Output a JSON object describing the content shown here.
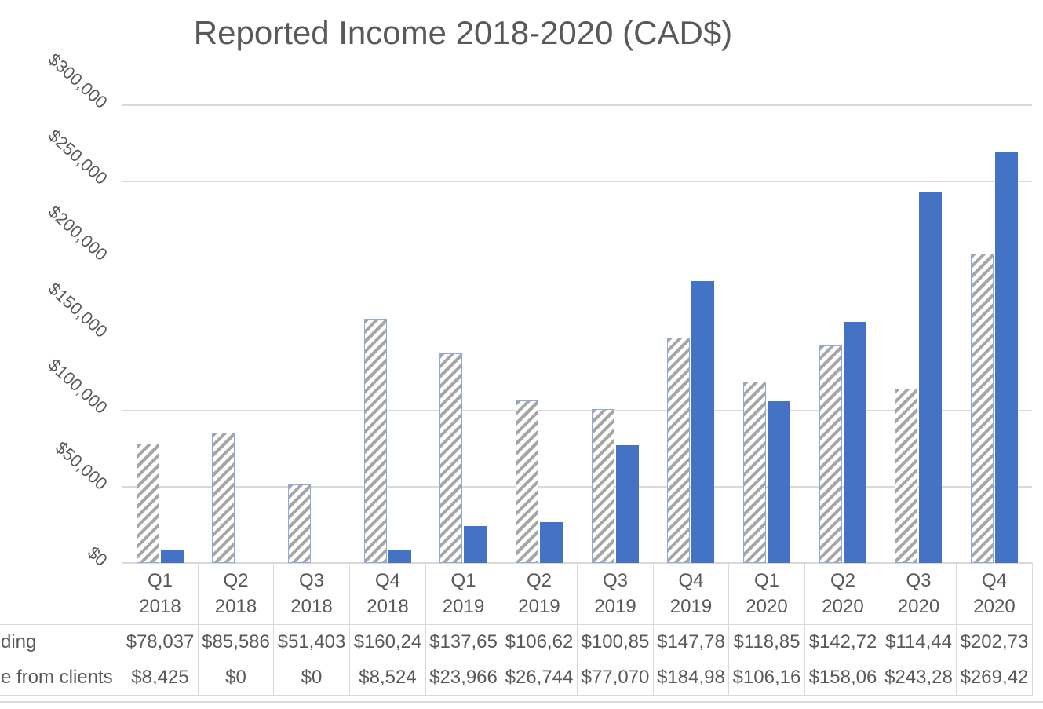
{
  "chart": {
    "title": "Reported Income 2018-2020 (CAD$)",
    "colors": {
      "clients_bar_blue": "#4472C4",
      "funding_hatch_gray": "#A6A6A6",
      "funding_bar_border": "#8FAADC",
      "gridline": "#D9D9D9",
      "text": "#595959"
    },
    "y_axis": {
      "tick_labels": [
        "$300,000",
        "$250,000",
        "$200,000",
        "$150,000",
        "$100,000",
        "$50,000",
        "$0"
      ],
      "tick_values": [
        300000,
        250000,
        200000,
        150000,
        100000,
        50000,
        0
      ]
    }
  },
  "chart_data": {
    "type": "bar",
    "title": "Reported Income 2018-2020 (CAD$)",
    "categories": [
      "Q1 2018",
      "Q2 2018",
      "Q3 2018",
      "Q4 2018",
      "Q1 2019",
      "Q2 2019",
      "Q3 2019",
      "Q4 2019",
      "Q1 2020",
      "Q2 2020",
      "Q3 2020",
      "Q4 2020"
    ],
    "categories_two_line": [
      {
        "quarter": "Q1",
        "year": "2018"
      },
      {
        "quarter": "Q2",
        "year": "2018"
      },
      {
        "quarter": "Q3",
        "year": "2018"
      },
      {
        "quarter": "Q4",
        "year": "2018"
      },
      {
        "quarter": "Q1",
        "year": "2019"
      },
      {
        "quarter": "Q2",
        "year": "2019"
      },
      {
        "quarter": "Q3",
        "year": "2019"
      },
      {
        "quarter": "Q4",
        "year": "2019"
      },
      {
        "quarter": "Q1",
        "year": "2020"
      },
      {
        "quarter": "Q2",
        "year": "2020"
      },
      {
        "quarter": "Q3",
        "year": "2020"
      },
      {
        "quarter": "Q4",
        "year": "2020"
      }
    ],
    "series": [
      {
        "name": "ding",
        "style": "hatched-gray-diagonal",
        "values": [
          78037,
          85586,
          51403,
          160240,
          137650,
          106620,
          100850,
          147780,
          118850,
          142720,
          114440,
          202730
        ],
        "display_values": [
          "$78,037",
          "$85,586",
          "$51,403",
          "$160,24",
          "$137,65",
          "$106,62",
          "$100,85",
          "$147,78",
          "$118,85",
          "$142,72",
          "$114,44",
          "$202,73"
        ]
      },
      {
        "name": "e from clients",
        "style": "solid-blue",
        "values": [
          8425,
          0,
          0,
          8524,
          23966,
          26744,
          77070,
          184980,
          106160,
          158060,
          243280,
          269420
        ],
        "display_values": [
          "$8,425",
          "$0",
          "$0",
          "$8,524",
          "$23,966",
          "$26,744",
          "$77,070",
          "$184,98",
          "$106,16",
          "$158,06",
          "$243,28",
          "$269,42"
        ]
      }
    ],
    "xlabel": "",
    "ylabel": "",
    "ylim": [
      0,
      300000
    ],
    "grid": true,
    "legend_position": "none",
    "data_table_shown": true
  }
}
